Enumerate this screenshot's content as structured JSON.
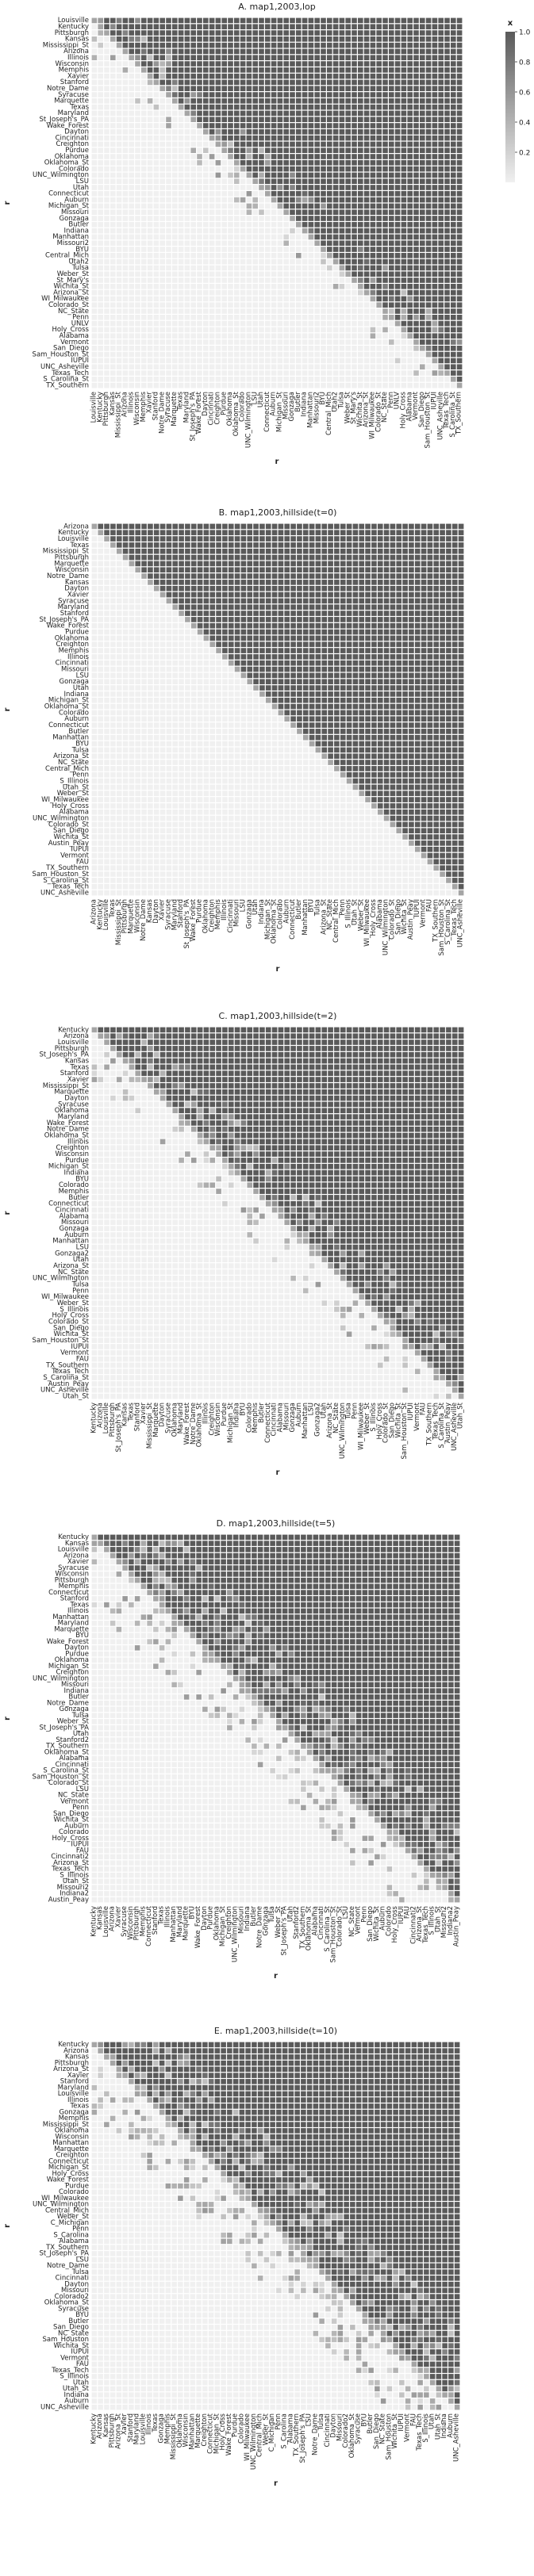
{
  "legend": {
    "title": "x",
    "ticks": [
      "1.0",
      "0.8",
      "0.6",
      "0.4",
      "0.2"
    ],
    "tick_values": [
      1.0,
      0.8,
      0.6,
      0.4,
      0.2
    ],
    "range": [
      0,
      1
    ],
    "colors": [
      "#f0f0f0",
      "#5a5a5a"
    ]
  },
  "chart_data": [
    {
      "type": "heatmap",
      "title": "A. map1,2003,lop",
      "xlabel": "r",
      "ylabel": "r",
      "rows": [
        "Louisville",
        "Kentucky",
        "Pittsburgh",
        "Kansas",
        "Mississippi_St",
        "Arizona",
        "Illinois",
        "Wisconsin",
        "Memphis",
        "Xavier",
        "Stanford",
        "Notre_Dame",
        "Syracuse",
        "Marquette",
        "Texas",
        "Maryland",
        "St_Joseph's_PA",
        "Wake_Forest",
        "Dayton",
        "Cincinnati",
        "Creighton",
        "Purdue",
        "Oklahoma",
        "Oklahoma_St",
        "Colorado",
        "UNC_Wilmington",
        "LSU",
        "Utah",
        "Connecticut",
        "Auburn",
        "Michigan_St",
        "Missouri",
        "Gonzaga",
        "Butler",
        "Indiana",
        "Manhattan",
        "Missouri2",
        "BYU",
        "Central_Mich",
        "Utah2",
        "Tulsa",
        "Weber_St",
        "St_Mary's",
        "Wichita_St",
        "Arizona_St",
        "WI_Milwaukee",
        "Colorado_St",
        "NC_State",
        "Penn",
        "UNLV",
        "Holy_Cross",
        "Alabama",
        "Vermont",
        "San_Diego",
        "Sam_Houston_St",
        "IUPUI",
        "UNC_Asheville",
        "Texas_Tech",
        "S_Carolina_St",
        "TX_Southern"
      ],
      "ticks": [
        0,
        3,
        6,
        10,
        14,
        18,
        21,
        24,
        29,
        33,
        36,
        39,
        43,
        47,
        52,
        55,
        58
      ],
      "values": "triangle-probability",
      "scale": [
        0,
        1
      ]
    },
    {
      "type": "heatmap",
      "title": "B. map1,2003,hillside(t=0)",
      "xlabel": "r",
      "ylabel": "r",
      "rows": [
        "Arizona",
        "Kentucky",
        "Louisville",
        "Texas",
        "Mississippi_St",
        "Pittsburgh",
        "Marquette",
        "Wisconsin",
        "Notre_Dame",
        "Kansas",
        "Dayton",
        "Xavier",
        "Syracuse",
        "Maryland",
        "Stanford",
        "St_Joseph's_PA",
        "Wake_Forest",
        "Purdue",
        "Oklahoma",
        "Creighton",
        "Memphis",
        "Illinois",
        "Cincinnati",
        "Missouri",
        "LSU",
        "Gonzaga",
        "Utah",
        "Indiana",
        "Michigan_St",
        "Oklahoma_St",
        "Colorado",
        "Auburn",
        "Connecticut",
        "Butler",
        "Manhattan",
        "BYU",
        "Tulsa",
        "Arizona_St",
        "NC_State",
        "Central_Mich",
        "Penn",
        "S_Illinois",
        "Utah_St",
        "Weber_St",
        "WI_Milwaukee",
        "Holy_Cross",
        "Alabama",
        "UNC_Wilmington",
        "Colorado_St",
        "San_Diego",
        "Wichita_St",
        "Austin_Peay",
        "IUPUI",
        "Vermont",
        "FAU",
        "TX_Southern",
        "Sam_Houston_St",
        "S_Carolina_St",
        "Texas_Tech",
        "UNC_Asheville"
      ],
      "ticks": [
        0,
        3,
        6,
        10,
        14,
        18,
        21,
        24,
        29,
        33,
        36,
        39,
        43,
        47,
        52,
        55,
        58
      ],
      "values": "triangle-probability",
      "scale": [
        0,
        1
      ]
    },
    {
      "type": "heatmap",
      "title": "C. map1,2003,hillside(t=2)",
      "xlabel": "r",
      "ylabel": "r",
      "rows": [
        "Kentucky",
        "Arizona",
        "Louisville",
        "Pittsburgh",
        "St_Joseph's_PA",
        "Kansas",
        "Texas",
        "Stanford",
        "Xavier",
        "Mississippi_St",
        "Marquette",
        "Dayton",
        "Syracuse",
        "Oklahoma",
        "Maryland",
        "Wake_Forest",
        "Notre_Dame",
        "Oklahoma_St",
        "Illinois",
        "Creighton",
        "Wisconsin",
        "Purdue",
        "Michigan_St",
        "Indiana",
        "BYU",
        "Colorado",
        "Memphis",
        "Butler",
        "Connecticut",
        "Cincinnati",
        "Alabama",
        "Missouri",
        "Gonzaga",
        "Auburn",
        "Manhattan",
        "LSU",
        "Gonzaga2",
        "Utah",
        "Arizona_St",
        "NC_State",
        "UNC_Wilmington",
        "Tulsa",
        "Penn",
        "WI_Milwaukee",
        "Weber_St",
        "S_Illinois",
        "Holy_Cross",
        "Colorado_St",
        "San_Diego",
        "Wichita_St",
        "Sam_Houston_St",
        "IUPUI",
        "Vermont",
        "FAU",
        "TX_Southern",
        "Texas_Tech",
        "S_Carolina_St",
        "Austin_Peay",
        "UNC_Asheville",
        "Utah_St"
      ],
      "ticks": [
        0,
        3,
        6,
        10,
        14,
        18,
        21,
        24,
        29,
        33,
        36,
        39,
        43,
        47,
        52,
        55,
        58
      ],
      "values": "triangle-probability",
      "scale": [
        0,
        1
      ]
    },
    {
      "type": "heatmap",
      "title": "D. map1,2003,hillside(t=5)",
      "xlabel": "r",
      "ylabel": "r",
      "rows": [
        "Kentucky",
        "Kansas",
        "Louisville",
        "Arizona",
        "Xavier",
        "Syracuse",
        "Wisconsin",
        "Pittsburgh",
        "Memphis",
        "Connecticut",
        "Stanford",
        "Texas",
        "Illinois",
        "Manhattan",
        "Maryland",
        "Marquette",
        "BYU",
        "Wake_Forest",
        "Dayton",
        "Purdue",
        "Oklahoma",
        "Michigan_St",
        "Creighton",
        "UNC_Wilmington",
        "Missouri",
        "Indiana",
        "Butler",
        "Notre_Dame",
        "Gonzaga",
        "Tulsa",
        "Weber_St",
        "St_Joseph's_PA",
        "Utah",
        "Stanford2",
        "TX_Southern",
        "Oklahoma_St",
        "Alabama",
        "Cincinnati",
        "S_Carolina_St",
        "Sam_Houston_St",
        "Colorado_St",
        "LSU",
        "NC_State",
        "Vermont",
        "Penn",
        "San_Diego",
        "Wichita_St",
        "Auburn",
        "Colorado",
        "Holy_Cross",
        "IUPUI",
        "FAU",
        "Cincinnati2",
        "Arizona_St",
        "Texas_Tech",
        "S_Illinois",
        "Utah_St",
        "Missouri2",
        "Indiana2",
        "Austin_Peay"
      ],
      "ticks": [
        0,
        3,
        6,
        10,
        14,
        18,
        21,
        24,
        29,
        33,
        36,
        39,
        43,
        47,
        52,
        55,
        58
      ],
      "values": "triangle-probability",
      "scale": [
        0,
        1
      ]
    },
    {
      "type": "heatmap",
      "title": "E. map1,2003,hillside(t=10)",
      "xlabel": "r",
      "ylabel": "r",
      "rows": [
        "Kentucky",
        "Arizona",
        "Kansas",
        "Pittsburgh",
        "Arizona_St",
        "Xavier",
        "Stanford",
        "Maryland",
        "Louisville",
        "Illinois",
        "Texas",
        "Gonzaga",
        "Memphis",
        "Mississippi_St",
        "Oklahoma",
        "Wisconsin",
        "Manhattan",
        "Marquette",
        "Creighton",
        "Connecticut",
        "Michigan_St",
        "Holy_Cross",
        "Wake_Forest",
        "Purdue",
        "Colorado",
        "WI_Milwaukee",
        "UNC_Wilmington",
        "Central_Mich",
        "Weber_St",
        "C_Michigan",
        "Penn",
        "S_Carolina",
        "Alabama",
        "TX_Southern",
        "St_Joseph's_PA",
        "LSU",
        "Notre_Dame",
        "Tulsa",
        "Cincinnati",
        "Dayton",
        "Missouri",
        "Colorado2",
        "Oklahoma_St",
        "Syracuse",
        "BYU",
        "Butler",
        "San_Diego",
        "NC_State",
        "Sam_Houston",
        "Wichita_St",
        "IUPUI",
        "Vermont",
        "FAU",
        "Texas_Tech",
        "S_Illinois",
        "Utah",
        "Utah_St",
        "Indiana",
        "Auburn",
        "UNC_Asheville"
      ],
      "ticks": [
        0,
        3,
        6,
        10,
        14,
        18,
        21,
        24,
        29,
        33,
        36,
        39,
        43,
        47,
        52,
        55,
        58
      ],
      "values": "triangle-probability",
      "scale": [
        0,
        1
      ]
    }
  ]
}
